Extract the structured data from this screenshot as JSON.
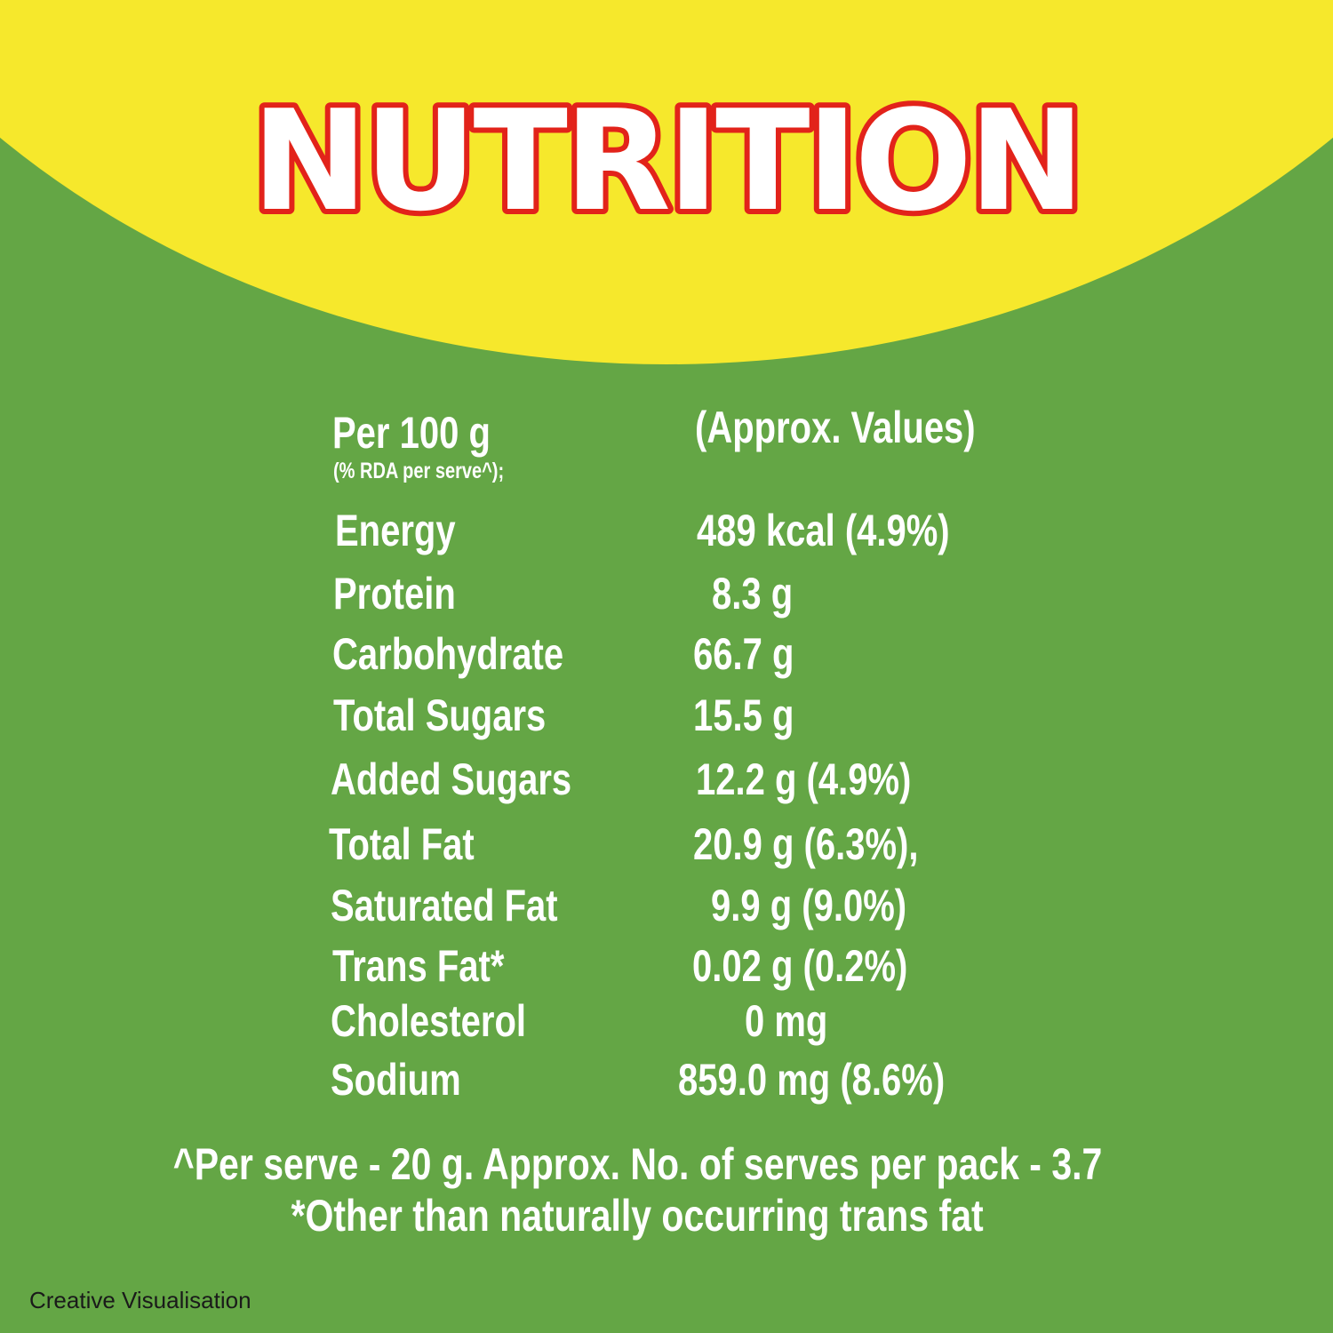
{
  "colors": {
    "background_green": "#64a645",
    "arc_yellow": "#f6e82c",
    "title_fill": "#ffffff",
    "title_outline": "#e2231a",
    "text": "#ffffff",
    "credit_text": "#1a1a1a"
  },
  "title": "NUTRITION",
  "header": {
    "basis": "Per 100 g",
    "basis_note": "(% RDA per serve^);",
    "values_note": "(Approx. Values)"
  },
  "nutrients": [
    {
      "name": "Energy",
      "value": "489 kcal (4.9%)"
    },
    {
      "name": "Protein",
      "value": "8.3 g"
    },
    {
      "name": "Carbohydrate",
      "value": "66.7 g"
    },
    {
      "name": "Total Sugars",
      "value": "15.5 g"
    },
    {
      "name": "Added Sugars",
      "value": "12.2 g (4.9%)"
    },
    {
      "name": "Total Fat",
      "value": "20.9 g (6.3%),"
    },
    {
      "name": "Saturated Fat",
      "value": "9.9 g (9.0%)"
    },
    {
      "name": "Trans Fat*",
      "value": "0.02 g (0.2%)"
    },
    {
      "name": "Cholesterol",
      "value": "0 mg"
    },
    {
      "name": "Sodium",
      "value": "859.0 mg (8.6%)"
    }
  ],
  "footnotes": {
    "serve": "^Per serve - 20 g. Approx. No. of serves per pack - 3.7",
    "trans_fat": "*Other than naturally occurring trans fat"
  },
  "credit": "Creative Visualisation"
}
